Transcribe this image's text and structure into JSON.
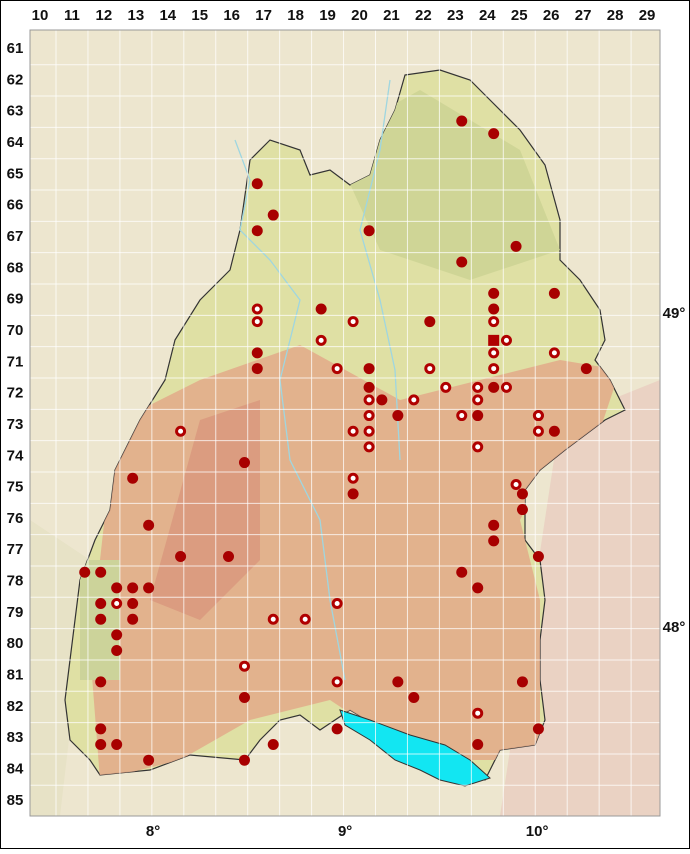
{
  "map": {
    "grid": {
      "columns": [
        10,
        11,
        12,
        13,
        14,
        15,
        16,
        17,
        18,
        19,
        20,
        21,
        22,
        23,
        24,
        25,
        26,
        27,
        28,
        29
      ],
      "rows": [
        61,
        62,
        63,
        64,
        65,
        66,
        67,
        68,
        69,
        70,
        71,
        72,
        73,
        74,
        75,
        76,
        77,
        78,
        79,
        80,
        81,
        82,
        83,
        84,
        85
      ]
    },
    "longitude_labels": [
      {
        "value": 8,
        "label": "8°"
      },
      {
        "value": 9,
        "label": "9°"
      },
      {
        "value": 10,
        "label": "10°"
      }
    ],
    "latitude_labels": [
      {
        "value": 49,
        "label": "49°"
      },
      {
        "value": 48,
        "label": "48°"
      }
    ],
    "records": {
      "col": [
        23.2,
        24.2,
        16.8,
        17.3,
        16.8,
        20.3,
        24.9,
        23.2,
        24.2,
        26.1,
        16.8,
        18.8,
        24.2,
        16.8,
        19.8,
        22.2,
        24.2,
        18.8,
        24.2,
        24.6,
        16.8,
        24.2,
        26.1,
        16.8,
        19.3,
        20.3,
        22.2,
        24.2,
        27.1,
        20.3,
        22.7,
        23.7,
        24.2,
        24.6,
        20.3,
        20.7,
        21.7,
        23.7,
        25.6,
        20.3,
        21.2,
        23.2,
        23.7,
        25.6,
        14.4,
        19.8,
        20.3,
        25.6,
        26.1,
        20.3,
        23.7,
        16.4,
        12.9,
        19.8,
        19.8,
        24.9,
        25.1,
        25.1,
        24.2,
        13.4,
        24.2,
        14.4,
        15.9,
        25.6,
        11.4,
        11.9,
        23.2,
        12.4,
        12.9,
        13.4,
        23.7,
        11.9,
        12.4,
        12.9,
        19.3,
        11.9,
        12.9,
        17.3,
        18.3,
        12.4,
        12.4,
        16.4,
        11.9,
        19.3,
        21.2,
        25.1,
        16.4,
        21.7,
        23.7,
        11.9,
        19.3,
        25.6,
        11.9,
        12.4,
        17.3,
        23.7,
        13.4,
        16.4
      ],
      "row": [
        63.3,
        63.7,
        65.3,
        66.3,
        66.8,
        66.8,
        67.3,
        67.8,
        68.8,
        68.8,
        69.3,
        69.3,
        69.3,
        69.7,
        69.7,
        69.7,
        69.7,
        70.3,
        70.3,
        70.3,
        70.7,
        70.7,
        70.7,
        71.2,
        71.2,
        71.2,
        71.2,
        71.2,
        71.2,
        71.8,
        71.8,
        71.8,
        71.8,
        71.8,
        72.2,
        72.2,
        72.2,
        72.2,
        72.7,
        72.7,
        72.7,
        72.7,
        72.7,
        72.7,
        73.2,
        73.2,
        73.2,
        73.2,
        73.2,
        73.7,
        73.7,
        74.2,
        74.7,
        74.7,
        75.2,
        74.9,
        75.2,
        75.7,
        76.2,
        76.2,
        76.7,
        77.2,
        77.2,
        77.2,
        77.7,
        77.7,
        77.7,
        78.2,
        78.2,
        78.2,
        78.2,
        78.7,
        78.7,
        78.7,
        78.7,
        79.2,
        79.2,
        79.2,
        79.2,
        79.7,
        80.2,
        80.7,
        81.2,
        81.2,
        81.2,
        81.2,
        81.7,
        81.7,
        82.2,
        82.7,
        82.7,
        82.7,
        83.2,
        83.2,
        83.2,
        83.2,
        83.7,
        83.7
      ],
      "symbol": [
        "filled",
        "filled",
        "filled",
        "filled",
        "filled",
        "filled",
        "filled",
        "filled",
        "filled",
        "filled",
        "open",
        "filled",
        "filled",
        "open",
        "open",
        "filled",
        "open",
        "open",
        "square",
        "open",
        "filled",
        "open",
        "open",
        "filled",
        "open",
        "filled",
        "open",
        "open",
        "filled",
        "filled",
        "open",
        "open",
        "filled",
        "open",
        "open",
        "filled",
        "open",
        "open",
        "open",
        "open",
        "filled",
        "open",
        "filled",
        "open",
        "open",
        "open",
        "open",
        "open",
        "filled",
        "open",
        "open",
        "filled",
        "filled",
        "open",
        "filled",
        "open",
        "filled",
        "filled",
        "filled",
        "filled",
        "filled",
        "filled",
        "filled",
        "filled",
        "filled",
        "filled",
        "filled",
        "filled",
        "filled",
        "filled",
        "filled",
        "filled",
        "open",
        "filled",
        "open",
        "filled",
        "filled",
        "open",
        "open",
        "filled",
        "filled",
        "open",
        "filled",
        "open",
        "filled",
        "filled",
        "filled",
        "filled",
        "open",
        "filled",
        "filled",
        "filled",
        "filled",
        "filled",
        "filled",
        "filled",
        "filled",
        "filled"
      ]
    }
  }
}
